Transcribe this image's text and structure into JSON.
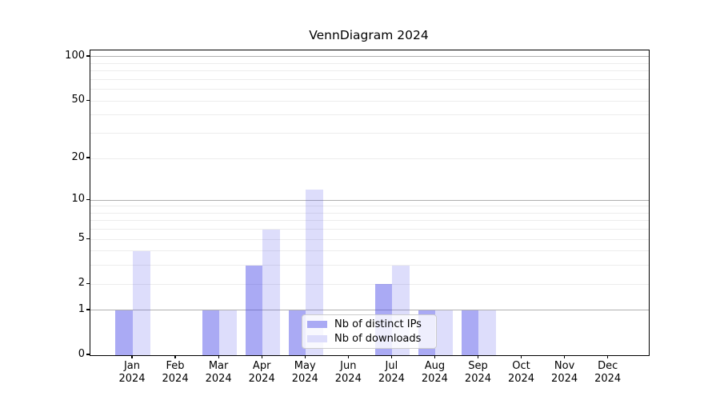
{
  "title": "VennDiagram 2024",
  "chart_data": {
    "type": "bar",
    "title": "VennDiagram 2024",
    "x_months": [
      "Jan",
      "Feb",
      "Mar",
      "Apr",
      "May",
      "Jun",
      "Jul",
      "Aug",
      "Sep",
      "Oct",
      "Nov",
      "Dec"
    ],
    "x_year": "2024",
    "series": [
      {
        "name": "Nb of distinct IPs",
        "values": [
          1,
          0,
          1,
          3,
          1,
          0,
          2,
          1,
          1,
          0,
          0,
          0
        ],
        "fill": "rgba(62,62,231,0.44)",
        "legend_swatch": "#aaaaf4"
      },
      {
        "name": "Nb of downloads",
        "values": [
          4,
          0,
          1,
          6,
          12,
          0,
          3,
          1,
          1,
          0,
          0,
          0
        ],
        "fill": "rgba(62,62,231,0.175)",
        "legend_swatch": "#ddddfb"
      }
    ],
    "yscale": "log1p",
    "ylim": [
      0,
      110
    ],
    "ytick_labels": [
      0,
      1,
      2,
      5,
      10,
      20,
      50,
      100
    ],
    "y_major_gridlines": [
      1,
      10,
      100
    ],
    "y_minor_gridlines": [
      2,
      3,
      4,
      5,
      6,
      7,
      8,
      9,
      20,
      30,
      40,
      50,
      60,
      70,
      80,
      90
    ],
    "grid": true,
    "legend_position": "inside-lower-center"
  },
  "colors": {
    "major_grid": "#b0b0b0",
    "minor_grid": "#ececec",
    "axis": "#000000",
    "background": "#ffffff",
    "legend_border": "#cccccc"
  }
}
